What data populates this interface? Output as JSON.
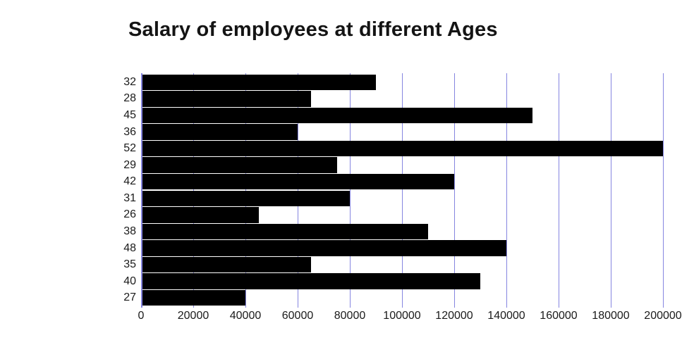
{
  "title": "Salary of employees at different Ages",
  "chart_data": {
    "type": "bar",
    "orientation": "horizontal",
    "title": "Salary of employees at different Ages",
    "xlabel": "",
    "ylabel": "",
    "categories": [
      "32",
      "28",
      "45",
      "36",
      "52",
      "29",
      "42",
      "31",
      "26",
      "38",
      "48",
      "35",
      "40",
      "27"
    ],
    "values": [
      90000,
      65000,
      150000,
      60000,
      200000,
      75000,
      120000,
      80000,
      45000,
      110000,
      140000,
      65000,
      130000,
      40000
    ],
    "xlim": [
      0,
      200000
    ],
    "xticks": [
      0,
      20000,
      40000,
      60000,
      80000,
      100000,
      120000,
      140000,
      160000,
      180000,
      200000
    ],
    "grid": "vertical",
    "gridline_color": "#8585e0",
    "bar_color": "#000000",
    "background_color": "#ffffff",
    "legend": "none"
  }
}
